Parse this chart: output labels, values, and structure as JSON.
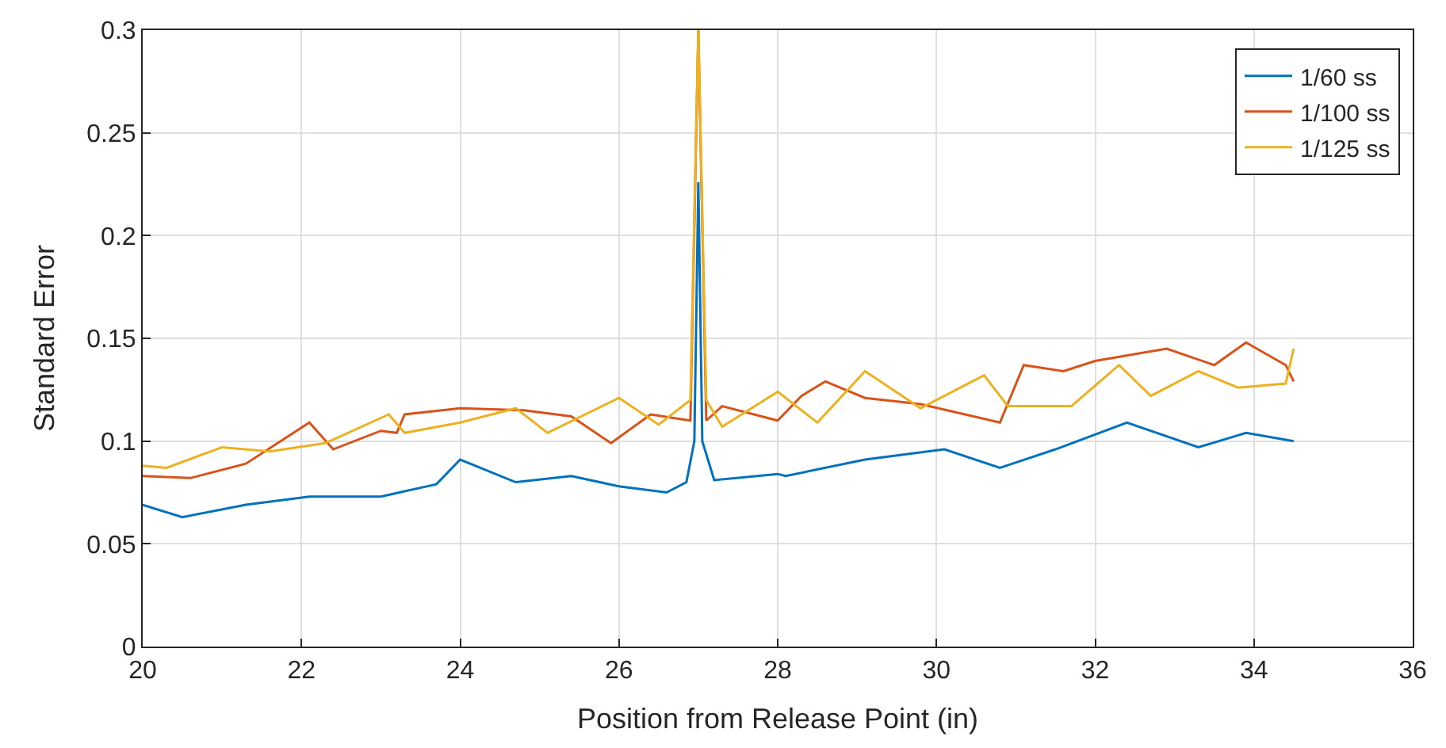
{
  "chart_data": {
    "type": "line",
    "xlabel": "Position from Release Point (in)",
    "ylabel": "Standard Error",
    "xlim": [
      20,
      36
    ],
    "xticks": [
      20,
      22,
      24,
      26,
      28,
      30,
      32,
      34,
      36
    ],
    "ylim": [
      0,
      0.3
    ],
    "yticks": [
      0,
      0.05,
      0.1,
      0.15,
      0.2,
      0.25,
      0.3
    ],
    "grid": true,
    "legend": "top right",
    "series": [
      {
        "name": "1/60 ss",
        "color": "#0072bd",
        "x": [
          20,
          20.5,
          21.3,
          22.1,
          23,
          23.7,
          24,
          24.7,
          25.4,
          26,
          26.6,
          26.85,
          26.95,
          27,
          27.05,
          27.2,
          28,
          28.1,
          29.1,
          30.1,
          30.8,
          31.5,
          32.4,
          33.3,
          33.9,
          34.5
        ],
        "values": [
          0.069,
          0.063,
          0.069,
          0.073,
          0.073,
          0.079,
          0.091,
          0.08,
          0.083,
          0.078,
          0.075,
          0.08,
          0.1,
          0.226,
          0.1,
          0.081,
          0.084,
          0.083,
          0.091,
          0.096,
          0.087,
          0.096,
          0.109,
          0.097,
          0.104,
          0.1
        ]
      },
      {
        "name": "1/100 ss",
        "color": "#d95319",
        "x": [
          20,
          20.6,
          21.3,
          22.1,
          22.4,
          23,
          23.2,
          23.3,
          24,
          24.8,
          25.4,
          25.9,
          26.4,
          26.9,
          27,
          27.1,
          27.3,
          28,
          28.3,
          28.6,
          29.1,
          29.8,
          30.8,
          31.1,
          31.6,
          32,
          32.9,
          33.5,
          33.9,
          34.4,
          34.5
        ],
        "values": [
          0.083,
          0.082,
          0.089,
          0.109,
          0.096,
          0.105,
          0.104,
          0.113,
          0.116,
          0.115,
          0.112,
          0.099,
          0.113,
          0.11,
          0.3,
          0.11,
          0.117,
          0.11,
          0.122,
          0.129,
          0.121,
          0.118,
          0.109,
          0.137,
          0.134,
          0.139,
          0.145,
          0.137,
          0.148,
          0.137,
          0.129
        ]
      },
      {
        "name": "1/125 ss",
        "color": "#edb120",
        "x": [
          20,
          20.3,
          21,
          21.6,
          22.3,
          23.1,
          23.3,
          24,
          24.7,
          25.1,
          26,
          26.5,
          26.9,
          27,
          27.1,
          27.3,
          28,
          28.5,
          29.1,
          29.8,
          30.6,
          30.9,
          31.7,
          32.3,
          32.7,
          33.3,
          33.8,
          34.4,
          34.5
        ],
        "values": [
          0.088,
          0.087,
          0.097,
          0.095,
          0.099,
          0.113,
          0.104,
          0.109,
          0.116,
          0.104,
          0.121,
          0.108,
          0.12,
          0.3,
          0.12,
          0.107,
          0.124,
          0.109,
          0.134,
          0.116,
          0.132,
          0.117,
          0.117,
          0.137,
          0.122,
          0.134,
          0.126,
          0.128,
          0.145
        ]
      }
    ]
  }
}
